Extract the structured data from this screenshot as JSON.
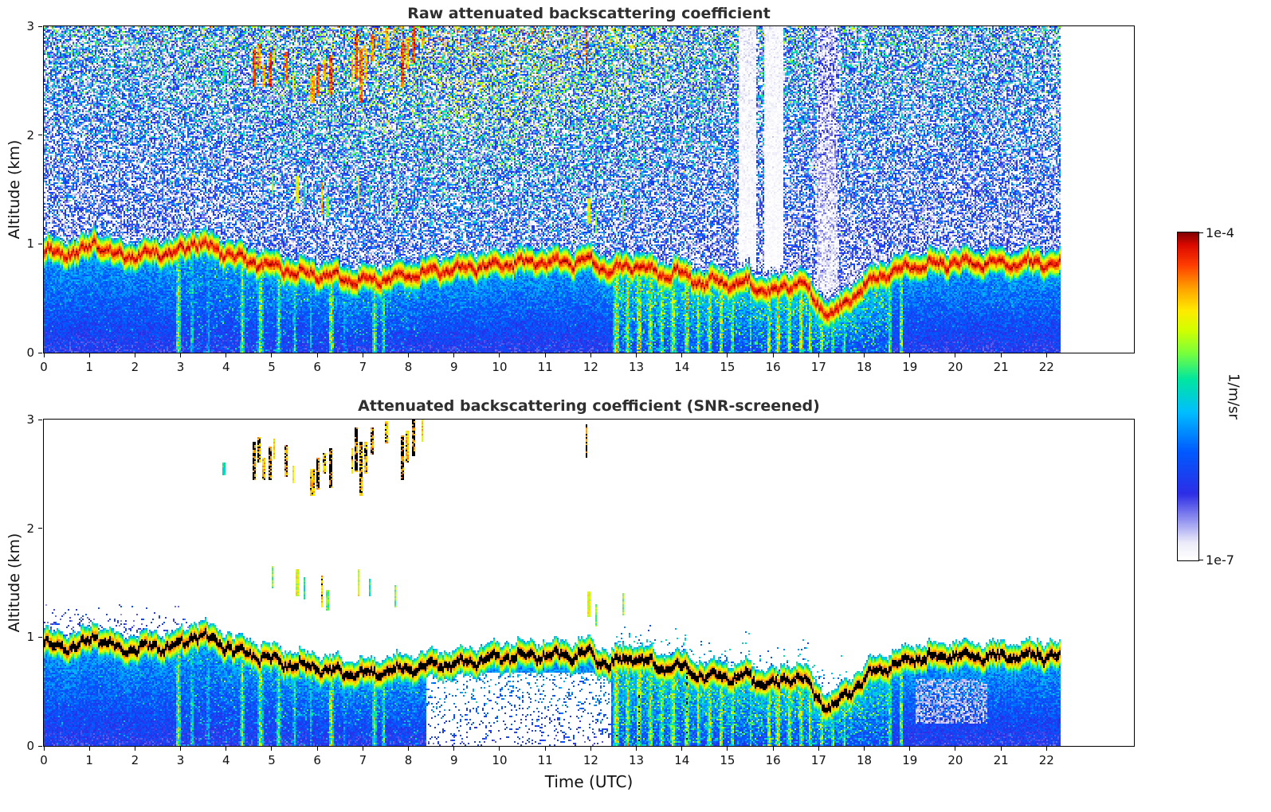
{
  "figure": {
    "background": "#ffffff",
    "xlabel": "Time (UTC)",
    "colormap_stops": [
      [
        0.0,
        "#ffffff"
      ],
      [
        0.05,
        "#ececfa"
      ],
      [
        0.11,
        "#a0a0f2"
      ],
      [
        0.2,
        "#2d2de6"
      ],
      [
        0.33,
        "#005aff"
      ],
      [
        0.45,
        "#00beff"
      ],
      [
        0.55,
        "#00e6a0"
      ],
      [
        0.63,
        "#78ff3c"
      ],
      [
        0.7,
        "#d2ff00"
      ],
      [
        0.76,
        "#ffeb00"
      ],
      [
        0.83,
        "#ffa000"
      ],
      [
        0.9,
        "#ff3c00"
      ],
      [
        0.96,
        "#dc0a00"
      ],
      [
        1.0,
        "#7d0000"
      ]
    ]
  },
  "panels": [
    {
      "title": "Raw attenuated backscattering coefficient",
      "ylabel": "Altitude (km)",
      "x_ticks": [
        0,
        1,
        2,
        3,
        4,
        5,
        6,
        7,
        8,
        9,
        10,
        11,
        12,
        13,
        14,
        15,
        16,
        17,
        18,
        19,
        20,
        21,
        22
      ],
      "y_ticks": [
        0,
        1,
        2,
        3
      ]
    },
    {
      "title": "Attenuated backscattering coefficient (SNR-screened)",
      "ylabel": "Altitude (km)",
      "x_ticks": [
        0,
        1,
        2,
        3,
        4,
        5,
        6,
        7,
        8,
        9,
        10,
        11,
        12,
        13,
        14,
        15,
        16,
        17,
        18,
        19,
        20,
        21,
        22
      ],
      "y_ticks": [
        0,
        1,
        2,
        3
      ]
    }
  ],
  "colorbar": {
    "label": "1/m/sr",
    "max_tick": "1e-4",
    "min_tick": "1e-7"
  },
  "chart_data": [
    {
      "type": "heatmap",
      "title": "Raw attenuated backscattering coefficient",
      "xlabel": "Time (UTC)",
      "ylabel": "Altitude (km)",
      "xlim": [
        0,
        23.9
      ],
      "ylim": [
        0,
        3
      ],
      "x_ticks": [
        0,
        1,
        2,
        3,
        4,
        5,
        6,
        7,
        8,
        9,
        10,
        11,
        12,
        13,
        14,
        15,
        16,
        17,
        18,
        19,
        20,
        21,
        22
      ],
      "y_ticks": [
        0,
        1,
        2,
        3
      ],
      "value_label": "1/m/sr",
      "value_min": 1e-07,
      "value_max": 0.0001,
      "value_scale": "log",
      "data_end_hour": 22.3,
      "features": {
        "description": "Ceilometer attenuated backscatter time-height plot. Strong aerosol/boundary-layer echo band near 0.7-1.1 km all day, dense blue speckle below it, noisy blue/cyan/green speckle above it increasing with altitude. Cloud flecks at 2.4-2.9 km between 04-08.3 UTC and at 11.9 UTC, mid-level flecks near 1.2-1.6 km 05-07.7 and 11.9-12.7 UTC. Precipitation/virga streaks reaching the ground 03-08 and 12.5-18.8 UTC. Signal-attenuated white columns above the layer near 15.3-16.2 and 17 UTC. Data end at 22.3 UTC.",
        "layer_hours": [
          0,
          0.5,
          0.9,
          1.1,
          1.3,
          1.6,
          2,
          2.4,
          2.8,
          3.1,
          3.3,
          3.6,
          4,
          4.4,
          4.8,
          5.2,
          5.6,
          6,
          6.4,
          6.8,
          7.2,
          7.6,
          8,
          8.4,
          8.8,
          9.2,
          9.6,
          10,
          10.4,
          10.8,
          11.2,
          11.6,
          11.9,
          12.1,
          12.4,
          12.7,
          13,
          13.3,
          13.6,
          13.9,
          14.2,
          14.5,
          14.8,
          15.1,
          15.4,
          15.7,
          16,
          16.3,
          16.6,
          16.9,
          17.1,
          17.3,
          17.5,
          17.8,
          18.1,
          18.4,
          18.7,
          19,
          19.5,
          20,
          20.5,
          21,
          21.5,
          22,
          22.3
        ],
        "layer_top_km": [
          1.0,
          0.98,
          1.0,
          1.09,
          1.03,
          0.97,
          0.96,
          0.99,
          0.97,
          1.02,
          1.1,
          1.05,
          0.98,
          0.92,
          0.88,
          0.84,
          0.8,
          0.78,
          0.76,
          0.73,
          0.73,
          0.76,
          0.78,
          0.8,
          0.82,
          0.84,
          0.86,
          0.88,
          0.9,
          0.9,
          0.9,
          0.89,
          0.93,
          0.87,
          0.82,
          0.86,
          0.88,
          0.82,
          0.78,
          0.82,
          0.75,
          0.7,
          0.73,
          0.68,
          0.72,
          0.66,
          0.62,
          0.68,
          0.72,
          0.55,
          0.45,
          0.42,
          0.5,
          0.62,
          0.72,
          0.78,
          0.82,
          0.86,
          0.88,
          0.9,
          0.9,
          0.88,
          0.9,
          0.9,
          0.88
        ],
        "clouds": [
          [
            4.62,
            2.62,
            0.04,
            0.18,
            1.0
          ],
          [
            4.72,
            2.72,
            0.03,
            0.12,
            0.95
          ],
          [
            4.82,
            2.55,
            0.03,
            0.1,
            0.9
          ],
          [
            4.95,
            2.6,
            0.04,
            0.15,
            1.0
          ],
          [
            5.06,
            2.73,
            0.02,
            0.1,
            0.85
          ],
          [
            5.3,
            2.62,
            0.03,
            0.14,
            0.95
          ],
          [
            5.46,
            2.5,
            0.02,
            0.08,
            0.8
          ],
          [
            5.9,
            2.42,
            0.05,
            0.12,
            0.9
          ],
          [
            6.02,
            2.5,
            0.04,
            0.15,
            1.0
          ],
          [
            6.16,
            2.6,
            0.03,
            0.1,
            0.9
          ],
          [
            6.3,
            2.55,
            0.04,
            0.18,
            1.0
          ],
          [
            6.76,
            2.62,
            0.03,
            0.12,
            0.9
          ],
          [
            6.86,
            2.72,
            0.04,
            0.2,
            1.0
          ],
          [
            6.96,
            2.55,
            0.03,
            0.25,
            0.95
          ],
          [
            7.06,
            2.65,
            0.03,
            0.15,
            0.9
          ],
          [
            7.2,
            2.8,
            0.03,
            0.12,
            0.95
          ],
          [
            7.5,
            2.88,
            0.03,
            0.1,
            0.9
          ],
          [
            7.85,
            2.65,
            0.04,
            0.2,
            1.0
          ],
          [
            7.96,
            2.75,
            0.03,
            0.15,
            0.9
          ],
          [
            8.1,
            2.85,
            0.04,
            0.18,
            1.0
          ],
          [
            8.3,
            2.9,
            0.03,
            0.1,
            0.85
          ],
          [
            11.9,
            2.8,
            0.03,
            0.15,
            1.0
          ],
          [
            3.95,
            2.55,
            0.02,
            0.06,
            0.6
          ],
          [
            5.0,
            1.55,
            0.02,
            0.1,
            0.7
          ],
          [
            5.55,
            1.5,
            0.03,
            0.12,
            0.8
          ],
          [
            5.7,
            1.45,
            0.02,
            0.1,
            0.6
          ],
          [
            6.1,
            1.42,
            0.03,
            0.15,
            0.9
          ],
          [
            6.22,
            1.34,
            0.02,
            0.1,
            0.7
          ],
          [
            6.9,
            1.5,
            0.03,
            0.12,
            0.8
          ],
          [
            7.16,
            1.45,
            0.02,
            0.08,
            0.6
          ],
          [
            7.7,
            1.38,
            0.03,
            0.1,
            0.7
          ],
          [
            11.95,
            1.3,
            0.03,
            0.12,
            0.8
          ],
          [
            12.1,
            1.2,
            0.02,
            0.1,
            0.7
          ],
          [
            12.7,
            1.3,
            0.02,
            0.1,
            0.7
          ]
        ],
        "precip_streaks": [
          [
            2.95,
            0.06,
            0.85
          ],
          [
            3.25,
            0.05,
            0.7
          ],
          [
            3.6,
            0.04,
            0.6
          ],
          [
            4.35,
            0.05,
            0.8
          ],
          [
            4.75,
            0.06,
            0.85
          ],
          [
            5.15,
            0.05,
            0.8
          ],
          [
            5.5,
            0.04,
            0.7
          ],
          [
            5.85,
            0.03,
            0.6
          ],
          [
            6.3,
            0.06,
            0.9
          ],
          [
            6.6,
            0.03,
            0.6
          ],
          [
            7.25,
            0.05,
            0.85
          ],
          [
            7.45,
            0.04,
            0.8
          ],
          [
            12.55,
            0.07,
            0.95
          ],
          [
            12.8,
            0.05,
            0.9
          ],
          [
            13.05,
            0.06,
            0.95
          ],
          [
            13.3,
            0.05,
            0.9
          ],
          [
            13.55,
            0.05,
            0.85
          ],
          [
            13.8,
            0.06,
            0.9
          ],
          [
            14.1,
            0.05,
            0.95
          ],
          [
            14.35,
            0.04,
            0.85
          ],
          [
            14.6,
            0.05,
            0.9
          ],
          [
            14.85,
            0.05,
            0.95
          ],
          [
            15.1,
            0.04,
            0.85
          ],
          [
            15.5,
            0.03,
            0.7
          ],
          [
            15.9,
            0.05,
            0.9
          ],
          [
            16.1,
            0.06,
            0.95
          ],
          [
            16.35,
            0.05,
            0.9
          ],
          [
            16.6,
            0.05,
            0.95
          ],
          [
            16.8,
            0.04,
            0.9
          ],
          [
            17.05,
            0.05,
            0.9
          ],
          [
            17.3,
            0.04,
            0.85
          ],
          [
            17.55,
            0.03,
            0.8
          ],
          [
            18.55,
            0.04,
            0.8
          ],
          [
            18.8,
            0.05,
            0.85
          ]
        ],
        "attenuated_columns": [
          [
            15.25,
            15.62,
            0.12
          ],
          [
            15.8,
            16.22,
            0.1
          ],
          [
            16.95,
            17.4,
            0.4
          ]
        ]
      }
    },
    {
      "type": "heatmap",
      "title": "Attenuated backscattering coefficient (SNR-screened)",
      "xlabel": "Time (UTC)",
      "ylabel": "Altitude (km)",
      "xlim": [
        0,
        23.9
      ],
      "ylim": [
        0,
        3
      ],
      "x_ticks": [
        0,
        1,
        2,
        3,
        4,
        5,
        6,
        7,
        8,
        9,
        10,
        11,
        12,
        13,
        14,
        15,
        16,
        17,
        18,
        19,
        20,
        21,
        22
      ],
      "y_ticks": [
        0,
        1,
        2,
        3
      ],
      "value_label": "1/m/sr",
      "value_min": 1e-07,
      "value_max": 0.0001,
      "value_scale": "log",
      "data_end_hour": 22.3,
      "screened": true,
      "saturated_color": "#000000",
      "note": "Same scene as panel 0 after SNR screening: noise above the aerosol layer removed (white); strongest echoes (layer core, cloud flecks) rendered black; residual low-SNR blue speckle below 1.3 km before 03:20 UTC; white low-signal pocket below 0.68 km between 08:25 and 12:25 UTC; pale low-value patches 19:05-20:40 UTC at 0.2-0.6 km.",
      "early_noise": {
        "hours": [
          0,
          3.3
        ],
        "below_km": 1.32
      },
      "white_pocket": {
        "hours": [
          8.4,
          12.45
        ],
        "below_km": 0.68
      },
      "pale_patch": {
        "hours": [
          19.1,
          20.7
        ],
        "alt_km": [
          0.2,
          0.62
        ]
      }
    }
  ]
}
